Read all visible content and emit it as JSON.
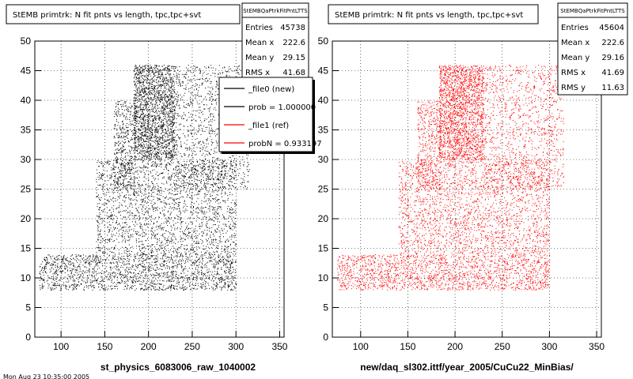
{
  "footer_text": "Mon Aug 23 10:35:00 2005",
  "chart_data": [
    {
      "type": "scatter",
      "title": "StEMB primtrk: N fit pnts vs length, tpc,tpc+svt",
      "xlabel": "st_physics_6083006_raw_1040002",
      "ylabel": "",
      "xlim": [
        70,
        355
      ],
      "ylim": [
        0,
        50
      ],
      "xticks": [
        100,
        150,
        200,
        250,
        300,
        350
      ],
      "yticks": [
        0,
        5,
        10,
        15,
        20,
        25,
        30,
        35,
        40,
        45,
        50
      ],
      "grid": true,
      "point_color": "#000000",
      "stats": {
        "name": "StEMBQaPtrkFitPntLTTS",
        "rows": [
          {
            "label": "Entries",
            "value": "45738"
          },
          {
            "label": "Mean x",
            "value": "222.6"
          },
          {
            "label": "Mean y",
            "value": "29.15"
          },
          {
            "label": "RMS x",
            "value": "41.68"
          }
        ]
      },
      "legend": {
        "placement": "top-right",
        "entries": [
          {
            "label": "_file0 (new)",
            "color": "#000000"
          },
          {
            "label": "prob = 1.000000",
            "color": "#000000"
          },
          {
            "label": "_file1 (ref)",
            "color": "#ff0000"
          },
          {
            "label": "probN = 0.933197",
            "color": "#ff0000"
          }
        ]
      },
      "density_regions": [
        {
          "x": [
            75,
            300
          ],
          "y": [
            8,
            14
          ],
          "weight": 0.2
        },
        {
          "x": [
            183,
            230
          ],
          "y": [
            30,
            46
          ],
          "weight": 0.22
        },
        {
          "x": [
            230,
            315
          ],
          "y": [
            25,
            46
          ],
          "weight": 0.13
        },
        {
          "x": [
            140,
            300
          ],
          "y": [
            14,
            30
          ],
          "weight": 0.25
        },
        {
          "x": [
            160,
            185
          ],
          "y": [
            25,
            40
          ],
          "weight": 0.05
        }
      ]
    },
    {
      "type": "scatter",
      "title": "StEMB primtrk: N fit pnts vs length, tpc,tpc+svt",
      "xlabel": "new/daq_sl302.ittf/year_2005/CuCu22_MinBias/",
      "ylabel": "",
      "xlim": [
        70,
        355
      ],
      "ylim": [
        0,
        50
      ],
      "xticks": [
        100,
        150,
        200,
        250,
        300,
        350
      ],
      "yticks": [
        0,
        5,
        10,
        15,
        20,
        25,
        30,
        35,
        40,
        45,
        50
      ],
      "grid": true,
      "point_color": "#ff0000",
      "stats": {
        "name": "StEMBQaPtrkFitPntLTTS",
        "rows": [
          {
            "label": "Entries",
            "value": "45604"
          },
          {
            "label": "Mean x",
            "value": "222.6"
          },
          {
            "label": "Mean y",
            "value": "29.16"
          },
          {
            "label": "RMS x",
            "value": "41.69"
          },
          {
            "label": "RMS y",
            "value": "11.63"
          }
        ]
      },
      "density_regions": [
        {
          "x": [
            75,
            300
          ],
          "y": [
            8,
            14
          ],
          "weight": 0.2
        },
        {
          "x": [
            183,
            230
          ],
          "y": [
            30,
            46
          ],
          "weight": 0.22
        },
        {
          "x": [
            230,
            315
          ],
          "y": [
            25,
            46
          ],
          "weight": 0.13
        },
        {
          "x": [
            140,
            300
          ],
          "y": [
            14,
            30
          ],
          "weight": 0.25
        },
        {
          "x": [
            160,
            185
          ],
          "y": [
            25,
            40
          ],
          "weight": 0.05
        }
      ]
    }
  ]
}
